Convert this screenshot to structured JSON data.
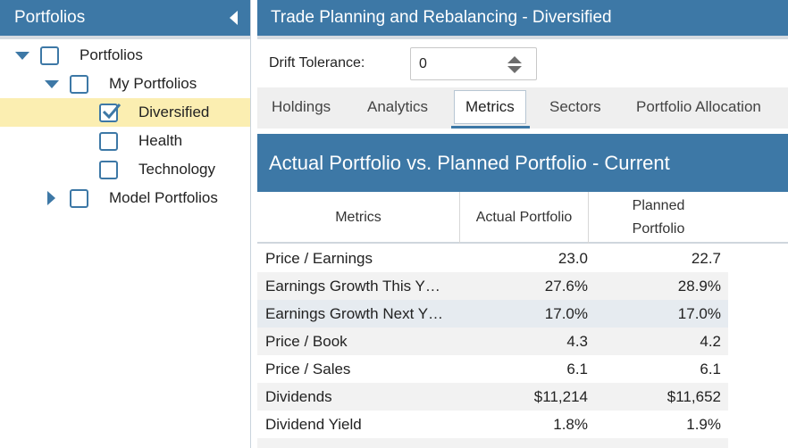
{
  "sidebar": {
    "title": "Portfolios",
    "tree": [
      {
        "label": "Portfolios",
        "checked": false
      },
      {
        "label": "My Portfolios",
        "checked": false
      },
      {
        "label": "Diversified",
        "checked": true
      },
      {
        "label": "Health",
        "checked": false
      },
      {
        "label": "Technology",
        "checked": false
      },
      {
        "label": "Model Portfolios",
        "checked": false
      }
    ]
  },
  "main": {
    "title": "Trade Planning and Rebalancing - Diversified",
    "drift": {
      "label": "Drift Tolerance:",
      "value": "0"
    },
    "tabs": [
      "Holdings",
      "Analytics",
      "Metrics",
      "Sectors",
      "Portfolio Allocation"
    ],
    "active_tab": "Metrics",
    "section_title": "Actual Portfolio vs. Planned Portfolio - Current",
    "table": {
      "headers": {
        "metrics": "Metrics",
        "actual": "Actual Portfolio",
        "planned_line1": "Planned",
        "planned_line2": "Portfolio"
      },
      "rows": [
        {
          "name": "Price / Earnings",
          "actual": "23.0",
          "planned": "22.7"
        },
        {
          "name": "Earnings Growth This Y…",
          "actual": "27.6%",
          "planned": "28.9%"
        },
        {
          "name": "Earnings Growth Next Y…",
          "actual": "17.0%",
          "planned": "17.0%"
        },
        {
          "name": "Price / Book",
          "actual": "4.3",
          "planned": "4.2"
        },
        {
          "name": "Price / Sales",
          "actual": "6.1",
          "planned": "6.1"
        },
        {
          "name": "Dividends",
          "actual": "$11,214",
          "planned": "$11,652"
        },
        {
          "name": "Dividend Yield",
          "actual": "1.8%",
          "planned": "1.9%"
        }
      ]
    }
  },
  "colors": {
    "accent": "#3d78a6",
    "selected_row": "#fbeeb1"
  }
}
